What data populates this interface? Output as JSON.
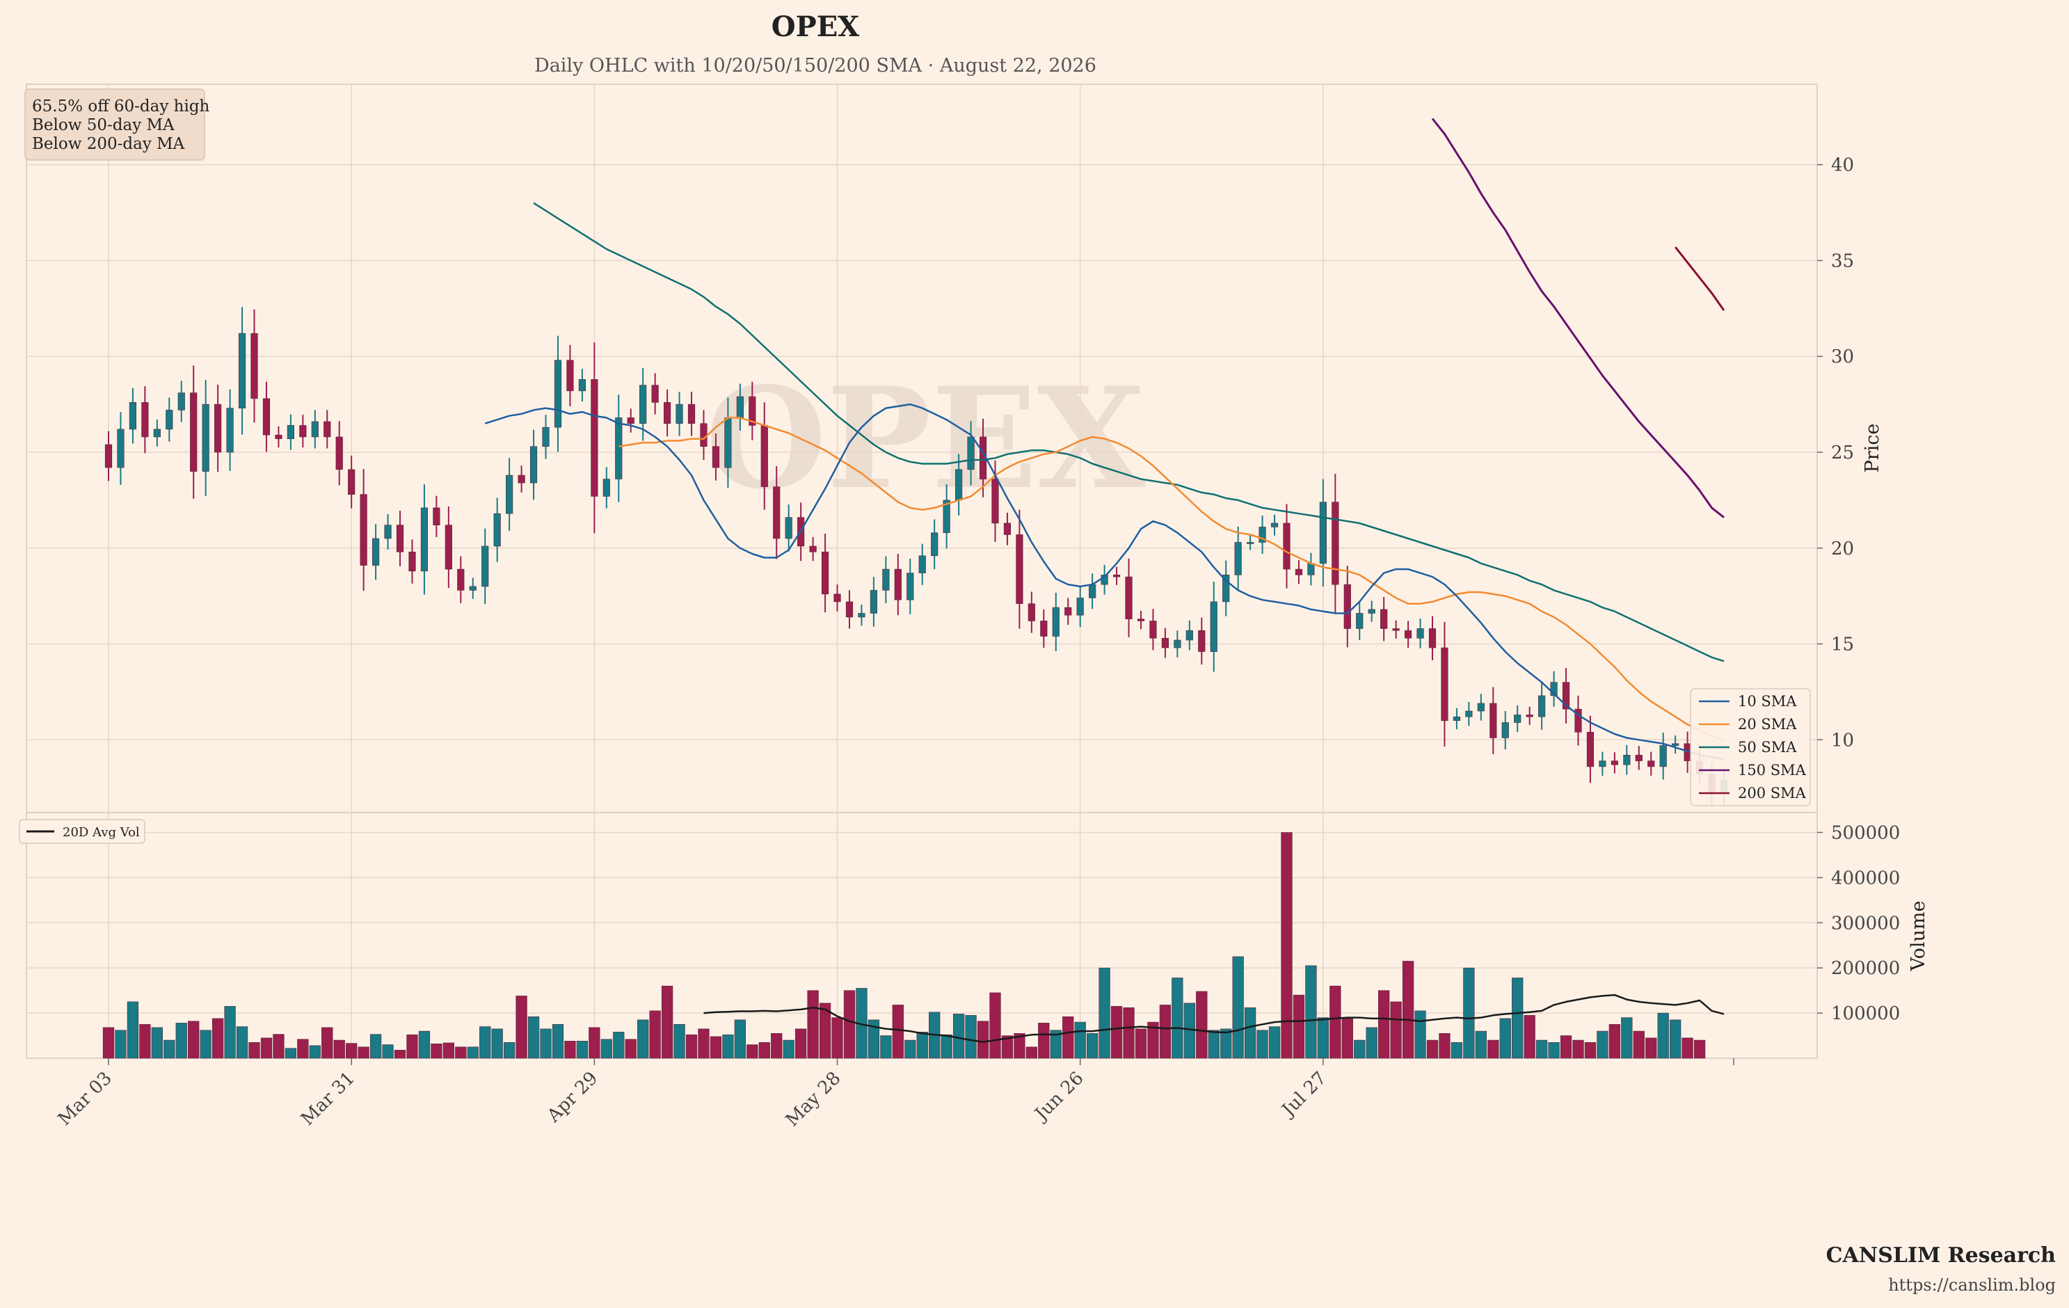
{
  "title": "OPEX",
  "subtitle": "Daily OHLC with 10/20/50/150/200 SMA  ·  August 22, 2026",
  "watermark": "OPEX",
  "info_box": [
    "65.5% off 60-day high",
    "Below 50-day MA",
    "Below 200-day MA"
  ],
  "brand": "CANSLIM Research",
  "url": "https://canslim.blog",
  "colors": {
    "background": "#fdf1e6",
    "up": "#1a7a85",
    "down": "#9c1f4d",
    "sma10": "#1f5fa0",
    "sma20": "#f28a30",
    "sma50": "#0f7070",
    "sma150": "#6a1070",
    "sma200": "#8a1030",
    "avgvol": "#1a1a1a"
  },
  "chart_data": {
    "type": "candlestick",
    "x_tick_labels": [
      "Mar 03",
      "Mar 31",
      "Apr 29",
      "May 28",
      "Jun 26",
      "Jul 27"
    ],
    "x_tick_index": [
      0,
      20,
      40,
      60,
      80,
      100
    ],
    "price_axis": {
      "label": "Price",
      "ticks": [
        10,
        15,
        20,
        25,
        30,
        35,
        40
      ],
      "range": [
        6.2,
        44.2
      ]
    },
    "volume_axis": {
      "label": "Volume",
      "ticks": [
        100000,
        200000,
        300000,
        400000,
        500000
      ],
      "tick_labels": [
        "100000",
        "200000",
        "300000",
        "400000",
        "500000"
      ],
      "range": [
        0,
        510000
      ]
    },
    "legend": {
      "position": "lower-right",
      "entries": [
        "10 SMA",
        "20 SMA",
        "50 SMA",
        "150 SMA",
        "200 SMA"
      ]
    },
    "volume_legend": {
      "position": "upper-left",
      "entries": [
        "20D Avg Vol"
      ]
    },
    "ohlc_close": [
      24.2,
      26.2,
      27.6,
      25.8,
      26.2,
      27.2,
      28.1,
      24,
      27.5,
      25,
      27.3,
      31.2,
      27.8,
      25.9,
      25.7,
      26.4,
      25.8,
      26.6,
      25.8,
      24.1,
      22.8,
      19.1,
      20.5,
      21.2,
      19.8,
      18.8,
      22.1,
      21.2,
      18.9,
      17.8,
      18,
      20.1,
      21.8,
      23.8,
      23.4,
      25.3,
      26.3,
      29.8,
      28.2,
      28.8,
      22.7,
      23.6,
      26.8,
      26.5,
      28.5,
      27.6,
      26.5,
      27.5,
      26.5,
      25.3,
      24.2,
      26.8,
      27.9,
      26.4,
      23.2,
      20.5,
      21.6,
      20.1,
      19.8,
      17.6,
      17.2,
      16.4,
      16.6,
      17.8,
      18.9,
      17.3,
      18.7,
      19.6,
      20.8,
      22.5,
      24.1,
      25.8,
      23.6,
      21.3,
      20.7,
      17.1,
      16.2,
      15.4,
      16.9,
      16.5,
      17.4,
      18.1,
      18.6,
      18.5,
      16.3,
      16.2,
      15.3,
      14.8,
      15.2,
      15.7,
      14.6,
      17.2,
      18.6,
      20.3,
      20.3,
      21.1,
      21.3,
      18.9,
      18.6,
      19.2,
      22.4,
      18.1,
      15.8,
      16.6,
      16.8,
      15.8,
      15.7,
      15.3,
      15.8,
      14.8,
      11,
      11.2,
      11.5,
      11.9,
      10.1,
      10.9,
      11.3,
      11.2,
      12.3,
      13,
      11.6,
      10.4,
      8.6,
      8.9,
      8.7,
      9.2,
      8.9,
      8.6,
      9.7,
      9.8,
      8.9,
      8.2,
      7.2,
      7.9
    ],
    "volume": [
      68000,
      62000,
      125000,
      75000,
      68000,
      40000,
      78000,
      82000,
      62000,
      88000,
      115000,
      70000,
      35000,
      45000,
      53000,
      22000,
      42000,
      28000,
      68000,
      40000,
      33000,
      25000,
      53000,
      30000,
      18000,
      52000,
      60000,
      32000,
      34000,
      25000,
      25000,
      70000,
      65000,
      35000,
      138000,
      92000,
      65000,
      75000,
      38000,
      38000,
      68000,
      42000,
      58000,
      42000,
      85000,
      105000,
      160000,
      75000,
      52000,
      65000,
      48000,
      52000,
      85000,
      30000,
      35000,
      55000,
      40000,
      65000,
      150000,
      122000,
      90000,
      150000,
      155000,
      85000,
      50000,
      118000,
      40000,
      58000,
      102000,
      52000,
      98000,
      95000,
      82000,
      145000,
      50000,
      55000,
      25000,
      78000,
      62000,
      92000,
      80000,
      55000,
      200000,
      115000,
      112000,
      65000,
      80000,
      118000,
      178000,
      122000,
      148000,
      62000,
      65000,
      225000,
      112000,
      62000,
      70000,
      500000,
      140000,
      205000,
      90000,
      160000,
      88000,
      40000,
      68000,
      150000,
      125000,
      215000,
      105000,
      40000,
      55000,
      35000,
      200000,
      60000,
      40000,
      88000,
      178000,
      95000,
      40000,
      35000,
      50000,
      40000,
      35000,
      60000,
      75000,
      90000,
      60000,
      45000,
      100000,
      85000,
      45000,
      40000
    ],
    "sma10": [
      26.5,
      26.7,
      26.9,
      27,
      27.2,
      27.3,
      27.2,
      27,
      27.1,
      26.9,
      26.8,
      26.5,
      26.4,
      26.2,
      25.8,
      25.3,
      24.6,
      23.8,
      22.5,
      21.5,
      20.5,
      20,
      19.7,
      19.5,
      19.5,
      19.9,
      20.9,
      22,
      23.1,
      24.3,
      25.5,
      26.3,
      26.9,
      27.3,
      27.4,
      27.5,
      27.3,
      27,
      26.7,
      26.3,
      25.9,
      25,
      23.8,
      22.6,
      21.5,
      20.3,
      19.3,
      18.4,
      18.1,
      18,
      18.1,
      18.5,
      19.2,
      20,
      21,
      21.4,
      21.2,
      20.8,
      20.3,
      19.8,
      19,
      18.3,
      17.8,
      17.5,
      17.3,
      17.2,
      17.1,
      17,
      16.8,
      16.7,
      16.6,
      16.6,
      17.2,
      18,
      18.7,
      18.9,
      18.9,
      18.7,
      18.5,
      18.1,
      17.5,
      16.8,
      16.1,
      15.3,
      14.6,
      14,
      13.5,
      13,
      12.4,
      11.8,
      11.3,
      10.9,
      10.6,
      10.3,
      10.1,
      10,
      9.9,
      9.8,
      9.6,
      9.4,
      9.2,
      9.1,
      9
    ],
    "sma20": [
      25.3,
      25.4,
      25.5,
      25.5,
      25.6,
      25.6,
      25.7,
      25.7,
      26.3,
      26.8,
      26.8,
      26.6,
      26.4,
      26.2,
      26,
      25.7,
      25.4,
      25.1,
      24.7,
      24.3,
      23.9,
      23.4,
      22.9,
      22.4,
      22.1,
      22,
      22.1,
      22.3,
      22.5,
      22.7,
      23.2,
      23.8,
      24.2,
      24.5,
      24.7,
      24.9,
      25,
      25.3,
      25.6,
      25.8,
      25.7,
      25.5,
      25.2,
      24.8,
      24.3,
      23.7,
      23.1,
      22.5,
      21.9,
      21.4,
      21,
      20.8,
      20.7,
      20.5,
      20.2,
      19.8,
      19.5,
      19.2,
      19,
      18.9,
      18.8,
      18.6,
      18.2,
      17.8,
      17.4,
      17.1,
      17.1,
      17.2,
      17.4,
      17.6,
      17.7,
      17.7,
      17.6,
      17.5,
      17.3,
      17.1,
      16.7,
      16.4,
      16,
      15.5,
      15,
      14.4,
      13.8,
      13.1,
      12.5,
      12,
      11.6,
      11.2,
      10.8,
      10.5,
      10.2,
      10
    ],
    "sma50": [
      38,
      37.6,
      37.2,
      36.8,
      36.4,
      36,
      35.6,
      35.3,
      35,
      34.7,
      34.4,
      34.1,
      33.8,
      33.5,
      33.1,
      32.6,
      32.2,
      31.7,
      31.1,
      30.5,
      29.9,
      29.3,
      28.7,
      28.1,
      27.5,
      26.9,
      26.4,
      25.9,
      25.4,
      25,
      24.7,
      24.5,
      24.4,
      24.4,
      24.4,
      24.5,
      24.6,
      24.6,
      24.7,
      24.9,
      25,
      25.1,
      25.1,
      25,
      24.9,
      24.7,
      24.4,
      24.2,
      24,
      23.8,
      23.6,
      23.5,
      23.4,
      23.3,
      23.1,
      22.9,
      22.8,
      22.6,
      22.5,
      22.3,
      22.1,
      22,
      21.9,
      21.8,
      21.7,
      21.6,
      21.5,
      21.4,
      21.3,
      21.1,
      20.9,
      20.7,
      20.5,
      20.3,
      20.1,
      19.9,
      19.7,
      19.5,
      19.2,
      19,
      18.8,
      18.6,
      18.3,
      18.1,
      17.8,
      17.6,
      17.4,
      17.2,
      16.9,
      16.7,
      16.4,
      16.1,
      15.8,
      15.5,
      15.2,
      14.9,
      14.6,
      14.3,
      14.1
    ],
    "sma150": [
      42.4,
      41.6,
      40.6,
      39.6,
      38.5,
      37.5,
      36.6,
      35.5,
      34.4,
      33.4,
      32.6,
      31.7,
      30.8,
      29.9,
      29,
      28.2,
      27.4,
      26.6,
      25.9,
      25.2,
      24.5,
      23.8,
      23,
      22.1,
      21.6
    ],
    "sma200": [
      35.7,
      34.9,
      34.1,
      33.3,
      32.4
    ],
    "avg_vol20": [
      100000,
      102000,
      103000,
      104000,
      104000,
      105000,
      104000,
      106000,
      108000,
      112000,
      108000,
      93000,
      82000,
      75000,
      70000,
      65000,
      63000,
      60000,
      55000,
      52000,
      50000,
      45000,
      40000,
      36000,
      40000,
      44000,
      48000,
      52000,
      53000,
      52000,
      57000,
      60000,
      60000,
      63000,
      66000,
      68000,
      70000,
      68000,
      66000,
      67000,
      64000,
      61000,
      58000,
      57000,
      62000,
      70000,
      75000,
      80000,
      82000,
      82000,
      84000,
      86000,
      88000,
      90000,
      90000,
      88000,
      88000,
      86000,
      85000,
      82000,
      85000,
      88000,
      90000,
      88000,
      90000,
      95000,
      98000,
      100000,
      102000,
      105000,
      118000,
      125000,
      130000,
      135000,
      138000,
      140000,
      130000,
      125000,
      122000,
      120000,
      118000,
      122000,
      128000,
      105000,
      98000
    ],
    "sma150_start": 60,
    "sma200_start": 111,
    "sma20_start": 0,
    "avg_vol20_start": 0
  }
}
